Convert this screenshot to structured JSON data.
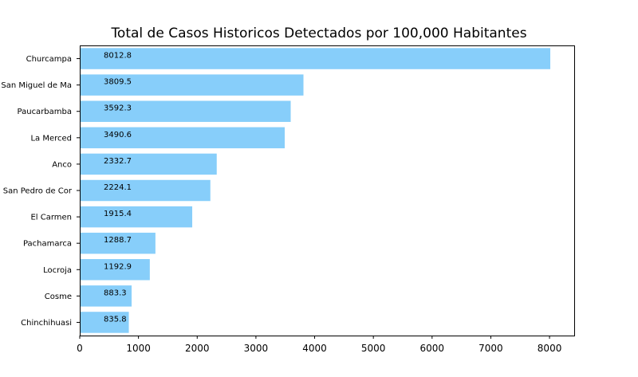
{
  "chart_data": {
    "type": "bar",
    "orientation": "horizontal",
    "title": "Total de Casos Historicos Detectados por 100,000 Habitantes",
    "xlabel": "",
    "ylabel": "",
    "categories": [
      "Churcampa",
      "San Miguel de Ma",
      "Paucarbamba",
      "La Merced",
      "Anco",
      "San Pedro de Cor",
      "El Carmen",
      "Pachamarca",
      "Locroja",
      "Cosme",
      "Chinchihuasi"
    ],
    "values": [
      8012.8,
      3809.5,
      3592.3,
      3490.6,
      2332.7,
      2224.1,
      1915.4,
      1288.7,
      1192.9,
      883.3,
      835.8
    ],
    "value_labels": [
      "8012.8",
      "3809.5",
      "3592.3",
      "3490.6",
      "2332.7",
      "2224.1",
      "1915.4",
      "1288.7",
      "1192.9",
      "883.3",
      "835.8"
    ],
    "xlim": [
      0,
      8420
    ],
    "xticks": [
      0,
      1000,
      2000,
      3000,
      4000,
      5000,
      6000,
      7000,
      8000
    ],
    "xtick_labels": [
      "0",
      "1000",
      "2000",
      "3000",
      "4000",
      "5000",
      "6000",
      "7000",
      "8000"
    ],
    "grid": false,
    "bar_color": "#87cefa"
  }
}
